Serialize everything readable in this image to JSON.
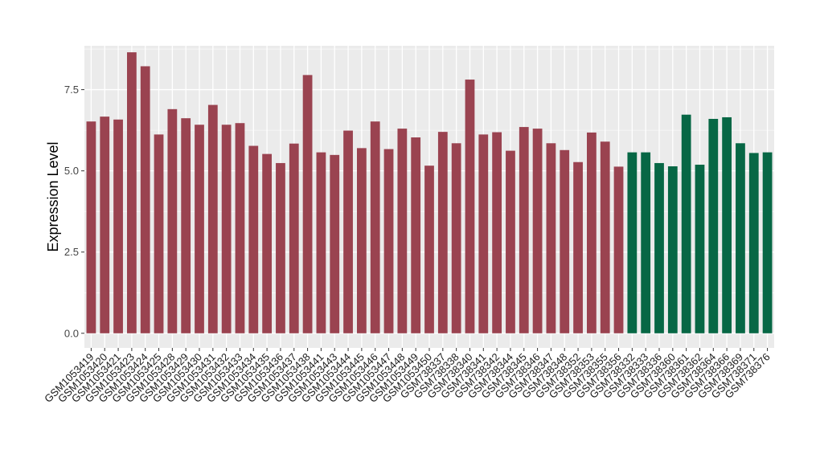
{
  "chart_data": {
    "type": "bar",
    "title": "",
    "xlabel": "",
    "ylabel": "Expression Level",
    "ylim": [
      -0.45,
      8.85
    ],
    "yticks": [
      0.0,
      2.5,
      5.0,
      7.5
    ],
    "ytick_labels": [
      "0.0",
      "2.5",
      "5.0",
      "7.5"
    ],
    "grid": true,
    "legend": "none",
    "colors": {
      "group1": "#9a4350",
      "group2": "#076745",
      "panel": "#ebebeb",
      "grid": "#ffffff"
    },
    "categories": [
      "GSM1053419",
      "GSM1053420",
      "GSM1053421",
      "GSM1053423",
      "GSM1053424",
      "GSM1053425",
      "GSM1053428",
      "GSM1053429",
      "GSM1053430",
      "GSM1053431",
      "GSM1053432",
      "GSM1053433",
      "GSM1053434",
      "GSM1053435",
      "GSM1053436",
      "GSM1053437",
      "GSM1053438",
      "GSM1053441",
      "GSM1053443",
      "GSM1053444",
      "GSM1053445",
      "GSM1053446",
      "GSM1053447",
      "GSM1053448",
      "GSM1053449",
      "GSM1053450",
      "GSM738337",
      "GSM738338",
      "GSM738340",
      "GSM738341",
      "GSM738342",
      "GSM738344",
      "GSM738345",
      "GSM738346",
      "GSM738347",
      "GSM738348",
      "GSM738352",
      "GSM738353",
      "GSM738355",
      "GSM738356",
      "GSM738332",
      "GSM738333",
      "GSM738336",
      "GSM738360",
      "GSM738361",
      "GSM738362",
      "GSM738364",
      "GSM738366",
      "GSM738369",
      "GSM738371",
      "GSM738376"
    ],
    "values": [
      6.52,
      6.67,
      6.58,
      8.65,
      8.22,
      6.12,
      6.9,
      6.62,
      6.42,
      7.03,
      6.42,
      6.47,
      5.77,
      5.52,
      5.24,
      5.84,
      7.95,
      5.57,
      5.49,
      6.24,
      5.7,
      6.52,
      5.67,
      6.3,
      6.03,
      5.16,
      6.2,
      5.85,
      7.81,
      6.12,
      6.19,
      5.62,
      6.35,
      6.3,
      5.85,
      5.64,
      5.27,
      6.18,
      5.9,
      5.13,
      5.57,
      5.57,
      5.24,
      5.14,
      6.73,
      5.19,
      6.6,
      6.65,
      5.85,
      5.55,
      5.57
    ],
    "groups": [
      1,
      1,
      1,
      1,
      1,
      1,
      1,
      1,
      1,
      1,
      1,
      1,
      1,
      1,
      1,
      1,
      1,
      1,
      1,
      1,
      1,
      1,
      1,
      1,
      1,
      1,
      1,
      1,
      1,
      1,
      1,
      1,
      1,
      1,
      1,
      1,
      1,
      1,
      1,
      1,
      2,
      2,
      2,
      2,
      2,
      2,
      2,
      2,
      2,
      2,
      2
    ]
  }
}
